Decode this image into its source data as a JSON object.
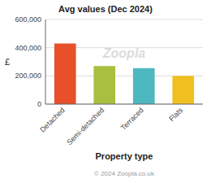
{
  "chart_data": {
    "type": "bar",
    "title": "Avg values (Dec 2024)",
    "categories": [
      "Detached",
      "Semi-detached",
      "Terraced",
      "Flats"
    ],
    "values": [
      430000,
      270000,
      255000,
      200000
    ],
    "colors": [
      "#e8502a",
      "#a8c040",
      "#4db8c0",
      "#f0c020"
    ],
    "xlabel": "Property type",
    "ylabel": "£",
    "ylim": [
      0,
      600000
    ],
    "yticks": [
      0,
      {
        "value": 200000,
        "label": "200,000"
      },
      {
        "value": 400000,
        "label": "400,000"
      },
      {
        "value": 600000,
        "label": "600,000"
      }
    ],
    "grid": true,
    "annotations": [
      "Zoopla",
      "© 2024 Zoopla.co.uk"
    ]
  }
}
